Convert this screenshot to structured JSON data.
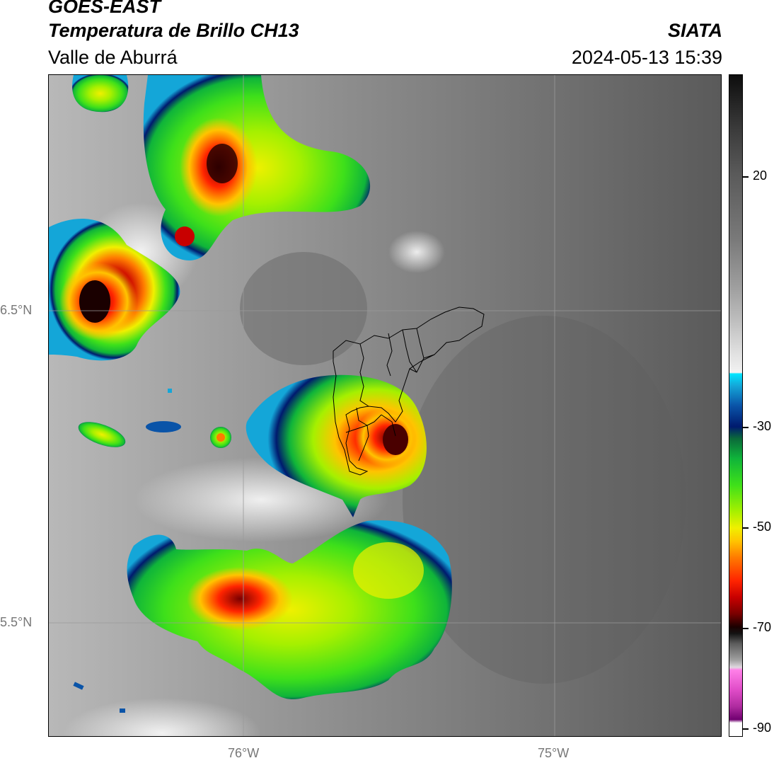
{
  "header": {
    "satellite": "GOES-EAST",
    "product": "Temperatura de Brillo CH13",
    "region": "Valle de Aburrá",
    "organization": "SIATA",
    "datetime": "2024-05-13 15:39"
  },
  "axes": {
    "lat_labels": [
      "6.5°N",
      "5.5°N"
    ],
    "lon_labels": [
      "76°W",
      "75°W"
    ]
  },
  "colorbar": {
    "tick_labels": [
      "20",
      "-30",
      "-50",
      "-70",
      "-90"
    ],
    "colors": {
      "warm_dark": "#0d0d0d",
      "warm_gray": "#9e9e9e",
      "cyan": "#00e5ff",
      "navy": "#001a6e",
      "green": "#0fb43a",
      "yellow": "#f0f000",
      "orange": "#ff7a00",
      "red": "#c80000",
      "deep_red": "#1a0000",
      "pink": "#ff80e8",
      "purple": "#700070"
    }
  },
  "map": {
    "gridlines": true,
    "boundary_overlay": "municipal-boundaries-aburra-valley"
  }
}
